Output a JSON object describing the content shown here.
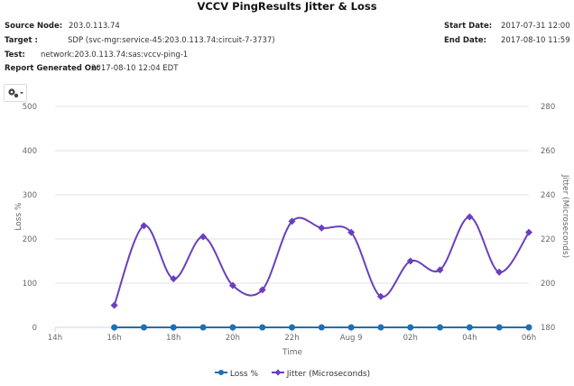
{
  "title": "VCCV PingResults Jitter & Loss",
  "meta": {
    "source_node_label": "Source Node:",
    "source_node_value": "203.0.113.74",
    "target_label": "Target :",
    "target_value": "SDP (svc-mgr:service-45:203.0.113.74:circuit-7-3737)",
    "test_label": "Test:",
    "test_value": "network:203.0.113.74:sas:vccv-ping-1",
    "report_label": "Report Generated On:",
    "report_value": "2017-08-10 12:04 EDT",
    "start_label": "Start Date:",
    "start_value": "2017-07-31 12:00",
    "end_label": "End Date:",
    "end_value": "2017-08-10 11:59"
  },
  "toolbar": {
    "options_icon": "gear-icon"
  },
  "colors": {
    "loss": "#1f6fb2",
    "jitter": "#6a3fbf",
    "grid": "#e0e0e0",
    "axis_text": "#666666"
  },
  "chart_data": {
    "type": "line",
    "title": "VCCV PingResults Jitter & Loss",
    "xlabel": "Time",
    "ylabel": "Loss %",
    "y2label": "Jitter (Microseconds)",
    "ylim": [
      0,
      500
    ],
    "y2lim": [
      180,
      280
    ],
    "yticks": [
      "0",
      "100",
      "200",
      "300",
      "400",
      "500"
    ],
    "y2ticks": [
      "180",
      "200",
      "220",
      "240",
      "260",
      "280"
    ],
    "xticks": [
      "14h",
      "16h",
      "18h",
      "20h",
      "22h",
      "Aug 9",
      "02h",
      "04h",
      "06h"
    ],
    "x": [
      "16h",
      "17h",
      "18h",
      "19h",
      "20h",
      "21h",
      "22h",
      "23h",
      "Aug 9",
      "01h",
      "02h",
      "03h",
      "04h",
      "05h",
      "06h"
    ],
    "grid": true,
    "legend_position": "bottom",
    "series": [
      {
        "name": "Loss %",
        "axis": "left",
        "values": [
          0,
          0,
          0,
          0,
          0,
          0,
          0,
          0,
          0,
          0,
          0,
          0,
          0,
          0,
          0
        ]
      },
      {
        "name": "Jitter (Microseconds)",
        "axis": "right",
        "values": [
          190,
          226,
          202,
          221,
          199,
          197,
          228,
          225,
          223,
          194,
          210,
          206,
          230,
          205,
          223
        ]
      }
    ]
  },
  "legend": {
    "loss_label": "Loss %",
    "jitter_label": "Jitter (Microseconds)"
  }
}
